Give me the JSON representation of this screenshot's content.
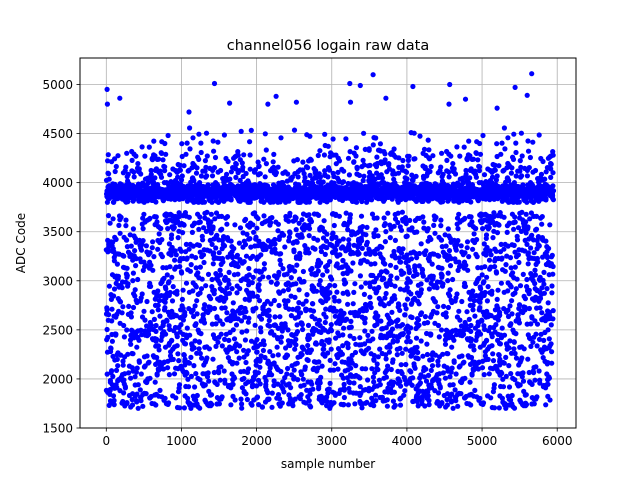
{
  "chart_data": {
    "type": "scatter",
    "title": "channel056 logain raw data",
    "xlabel": "sample number",
    "ylabel": "ADC Code",
    "xlim": [
      -350,
      6250
    ],
    "ylim": [
      1500,
      5270
    ],
    "xticks": [
      0,
      1000,
      2000,
      3000,
      4000,
      5000,
      6000
    ],
    "yticks": [
      1500,
      2000,
      2500,
      3000,
      3500,
      4000,
      4500,
      5000
    ],
    "xtick_labels": [
      "0",
      "1000",
      "2000",
      "3000",
      "4000",
      "5000",
      "6000"
    ],
    "ytick_labels": [
      "1500",
      "2000",
      "2500",
      "3000",
      "3500",
      "4000",
      "4500",
      "5000"
    ],
    "grid": true,
    "marker_color": "#0000ff",
    "series": [
      {
        "n_points": 5950,
        "x_range": [
          0,
          5950
        ],
        "dense_band": [
          3800,
          4000
        ],
        "spread_range": [
          1700,
          3700
        ],
        "sparse_range": [
          4000,
          4600
        ],
        "outliers": [
          {
            "x": 10,
            "y": 4950
          },
          {
            "x": 15,
            "y": 4800
          },
          {
            "x": 180,
            "y": 4860
          },
          {
            "x": 1100,
            "y": 4720
          },
          {
            "x": 1440,
            "y": 5010
          },
          {
            "x": 1640,
            "y": 4810
          },
          {
            "x": 2150,
            "y": 4800
          },
          {
            "x": 2260,
            "y": 4880
          },
          {
            "x": 2530,
            "y": 4820
          },
          {
            "x": 3240,
            "y": 5010
          },
          {
            "x": 3250,
            "y": 4820
          },
          {
            "x": 3380,
            "y": 4990
          },
          {
            "x": 3550,
            "y": 5100
          },
          {
            "x": 3720,
            "y": 4860
          },
          {
            "x": 4080,
            "y": 4980
          },
          {
            "x": 4570,
            "y": 5000
          },
          {
            "x": 4560,
            "y": 4800
          },
          {
            "x": 4780,
            "y": 4850
          },
          {
            "x": 5200,
            "y": 4760
          },
          {
            "x": 5440,
            "y": 4970
          },
          {
            "x": 5600,
            "y": 4890
          },
          {
            "x": 5660,
            "y": 5110
          }
        ]
      }
    ]
  }
}
